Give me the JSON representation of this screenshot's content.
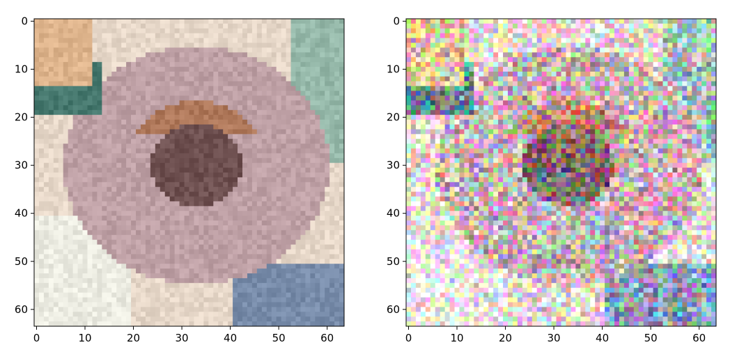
{
  "chart_data": [
    {
      "type": "heatmap",
      "title": "",
      "xlabel": "",
      "ylabel": "",
      "xlim": [
        -0.5,
        63.5
      ],
      "ylim": [
        63.5,
        -0.5
      ],
      "x_ticks": [
        "0",
        "10",
        "20",
        "30",
        "40",
        "50",
        "60"
      ],
      "y_ticks": [
        "0",
        "10",
        "20",
        "30",
        "40",
        "50",
        "60"
      ],
      "grid": false,
      "noise": 0
    },
    {
      "type": "heatmap",
      "title": "",
      "xlabel": "",
      "ylabel": "",
      "xlim": [
        -0.5,
        63.5
      ],
      "ylim": [
        63.5,
        -0.5
      ],
      "x_ticks": [
        "0",
        "10",
        "20",
        "30",
        "40",
        "50",
        "60"
      ],
      "y_ticks": [
        "0",
        "10",
        "20",
        "30",
        "40",
        "50",
        "60"
      ],
      "grid": false,
      "noise": 1
    }
  ],
  "colors": {
    "axis": "#000000",
    "background": "#ffffff"
  }
}
